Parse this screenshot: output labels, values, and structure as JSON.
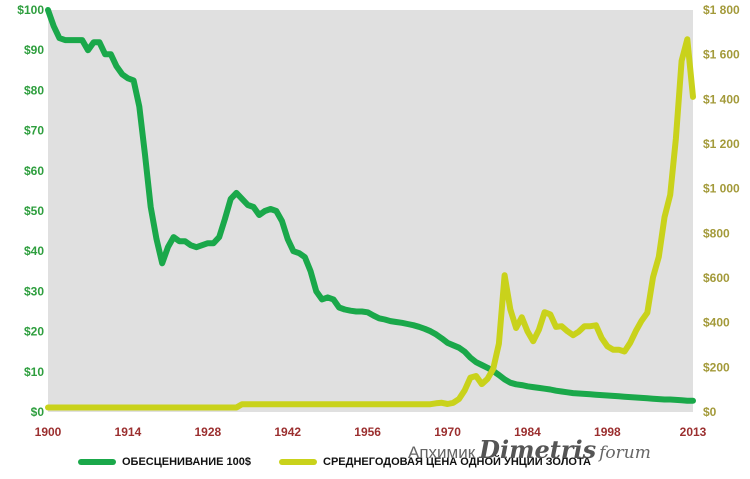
{
  "chart_data": {
    "type": "line",
    "x_ticks": [
      "1900",
      "1914",
      "1928",
      "1942",
      "1956",
      "1970",
      "1984",
      "1998",
      "2013"
    ],
    "y_left": {
      "ylim": [
        0,
        100
      ],
      "ticks": [
        "$0",
        "$10",
        "$20",
        "$30",
        "$40",
        "$50",
        "$60",
        "$70",
        "$80",
        "$90",
        "$100"
      ]
    },
    "y_right": {
      "ylim": [
        0,
        1800
      ],
      "ticks": [
        "$0",
        "$200",
        "$400",
        "$600",
        "$800",
        "$1 000",
        "$1 200",
        "$1 400",
        "$1 600",
        "$1 800"
      ]
    },
    "grid": false,
    "legend_position": "bottom",
    "series": [
      {
        "name": "ОБЕСЦЕНИВАНИЕ 100$",
        "axis": "left",
        "color": "#1aa84a",
        "points": [
          [
            1900,
            100
          ],
          [
            1901,
            96
          ],
          [
            1902,
            93
          ],
          [
            1903,
            92.5
          ],
          [
            1904,
            92.5
          ],
          [
            1905,
            92.5
          ],
          [
            1906,
            92.5
          ],
          [
            1907,
            90
          ],
          [
            1908,
            92
          ],
          [
            1909,
            92
          ],
          [
            1910,
            89
          ],
          [
            1911,
            89
          ],
          [
            1912,
            86
          ],
          [
            1913,
            84
          ],
          [
            1914,
            83
          ],
          [
            1915,
            82.5
          ],
          [
            1916,
            76
          ],
          [
            1917,
            64
          ],
          [
            1918,
            51
          ],
          [
            1919,
            43
          ],
          [
            1920,
            37
          ],
          [
            1921,
            41
          ],
          [
            1922,
            43.5
          ],
          [
            1923,
            42.5
          ],
          [
            1924,
            42.5
          ],
          [
            1925,
            41.5
          ],
          [
            1926,
            41
          ],
          [
            1927,
            41.5
          ],
          [
            1928,
            42
          ],
          [
            1929,
            42
          ],
          [
            1930,
            43.5
          ],
          [
            1931,
            48
          ],
          [
            1932,
            53
          ],
          [
            1933,
            54.5
          ],
          [
            1934,
            53
          ],
          [
            1935,
            51.5
          ],
          [
            1936,
            51
          ],
          [
            1937,
            49
          ],
          [
            1938,
            50
          ],
          [
            1939,
            50.5
          ],
          [
            1940,
            50
          ],
          [
            1941,
            47.5
          ],
          [
            1942,
            43
          ],
          [
            1943,
            40
          ],
          [
            1944,
            39.5
          ],
          [
            1945,
            38.5
          ],
          [
            1946,
            35
          ],
          [
            1947,
            30
          ],
          [
            1948,
            28
          ],
          [
            1949,
            28.5
          ],
          [
            1950,
            28
          ],
          [
            1951,
            26
          ],
          [
            1952,
            25.5
          ],
          [
            1953,
            25.2
          ],
          [
            1954,
            25
          ],
          [
            1955,
            25
          ],
          [
            1956,
            24.8
          ],
          [
            1957,
            24
          ],
          [
            1958,
            23.3
          ],
          [
            1959,
            23
          ],
          [
            1960,
            22.6
          ],
          [
            1961,
            22.4
          ],
          [
            1962,
            22.2
          ],
          [
            1963,
            21.9
          ],
          [
            1964,
            21.6
          ],
          [
            1965,
            21.2
          ],
          [
            1966,
            20.7
          ],
          [
            1967,
            20.1
          ],
          [
            1968,
            19.3
          ],
          [
            1969,
            18.3
          ],
          [
            1970,
            17.2
          ],
          [
            1971,
            16.6
          ],
          [
            1972,
            16
          ],
          [
            1973,
            15
          ],
          [
            1974,
            13.5
          ],
          [
            1975,
            12.4
          ],
          [
            1976,
            11.7
          ],
          [
            1977,
            11
          ],
          [
            1978,
            10.2
          ],
          [
            1979,
            9.2
          ],
          [
            1980,
            8.1
          ],
          [
            1981,
            7.3
          ],
          [
            1982,
            6.9
          ],
          [
            1983,
            6.7
          ],
          [
            1984,
            6.4
          ],
          [
            1985,
            6.2
          ],
          [
            1986,
            6
          ],
          [
            1987,
            5.8
          ],
          [
            1988,
            5.6
          ],
          [
            1989,
            5.3
          ],
          [
            1990,
            5.1
          ],
          [
            1991,
            4.9
          ],
          [
            1992,
            4.7
          ],
          [
            1993,
            4.6
          ],
          [
            1994,
            4.5
          ],
          [
            1995,
            4.4
          ],
          [
            1996,
            4.3
          ],
          [
            1997,
            4.2
          ],
          [
            1998,
            4.1
          ],
          [
            1999,
            4
          ],
          [
            2000,
            3.9
          ],
          [
            2001,
            3.8
          ],
          [
            2002,
            3.7
          ],
          [
            2003,
            3.6
          ],
          [
            2004,
            3.5
          ],
          [
            2005,
            3.4
          ],
          [
            2006,
            3.3
          ],
          [
            2007,
            3.2
          ],
          [
            2008,
            3.1
          ],
          [
            2009,
            3.1
          ],
          [
            2010,
            3
          ],
          [
            2011,
            2.9
          ],
          [
            2012,
            2.8
          ],
          [
            2013,
            2.8
          ]
        ]
      },
      {
        "name": "СРЕДНЕГОДОВАЯ ЦЕНА ОДНОЙ УНЦИИ ЗОЛОТА",
        "axis": "right",
        "color": "#c9d21b",
        "points": [
          [
            1900,
            20
          ],
          [
            1933,
            20
          ],
          [
            1934,
            35
          ],
          [
            1935,
            35
          ],
          [
            1955,
            35
          ],
          [
            1956,
            35
          ],
          [
            1967,
            35
          ],
          [
            1968,
            39
          ],
          [
            1969,
            41
          ],
          [
            1970,
            36
          ],
          [
            1971,
            41
          ],
          [
            1972,
            58
          ],
          [
            1973,
            97
          ],
          [
            1974,
            154
          ],
          [
            1975,
            161
          ],
          [
            1976,
            125
          ],
          [
            1977,
            148
          ],
          [
            1978,
            193
          ],
          [
            1979,
            306
          ],
          [
            1980,
            612
          ],
          [
            1981,
            460
          ],
          [
            1982,
            376
          ],
          [
            1983,
            424
          ],
          [
            1984,
            361
          ],
          [
            1985,
            317
          ],
          [
            1986,
            368
          ],
          [
            1987,
            447
          ],
          [
            1988,
            437
          ],
          [
            1989,
            381
          ],
          [
            1990,
            384
          ],
          [
            1991,
            362
          ],
          [
            1992,
            344
          ],
          [
            1993,
            360
          ],
          [
            1994,
            384
          ],
          [
            1995,
            384
          ],
          [
            1996,
            388
          ],
          [
            1997,
            331
          ],
          [
            1998,
            294
          ],
          [
            1999,
            279
          ],
          [
            2000,
            279
          ],
          [
            2001,
            271
          ],
          [
            2002,
            310
          ],
          [
            2003,
            363
          ],
          [
            2004,
            409
          ],
          [
            2005,
            444
          ],
          [
            2006,
            603
          ],
          [
            2007,
            695
          ],
          [
            2008,
            872
          ],
          [
            2009,
            972
          ],
          [
            2010,
            1225
          ],
          [
            2011,
            1572
          ],
          [
            2012,
            1669
          ],
          [
            2013,
            1411
          ]
        ]
      }
    ]
  },
  "legend": {
    "item1_label": "ОБЕСЦЕНИВАНИЕ 100$",
    "item2_label": "СРЕДНЕГОДОВАЯ ЦЕНА ОДНОЙ УНЦИИ ЗОЛОТА"
  },
  "watermark": {
    "part1": "Апхимик",
    "part2": "Dimetris",
    "part3": "forum"
  }
}
